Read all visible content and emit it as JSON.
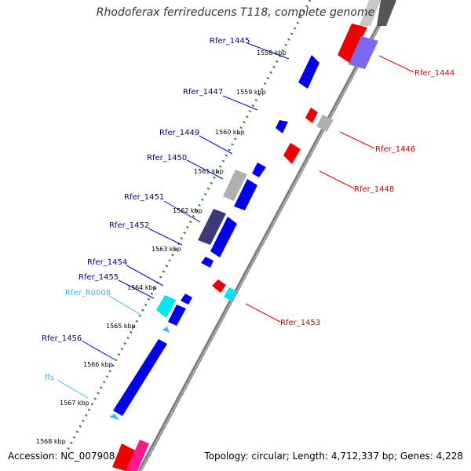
{
  "title": "Rhodoferax ferrireducens T118, complete genome",
  "accession_text": "Accession: NC_007908",
  "topology_text": "Topology: circular; Length: 4,712,337 bp; Genes: 4,228",
  "colors": {
    "forward_gene": "#0000ee",
    "forward_label": "#00008b",
    "reverse_gene": "#ee0000",
    "reverse_label": "#d40000",
    "rna": "#00e5ee",
    "rna_label": "#33bbee",
    "pseudo_gray": "#b0b0b0",
    "purple": "#3b3a7a",
    "pink": "#ff1a8c",
    "tick_green": "#2e8b2e",
    "backbone": "#7a7a7a"
  },
  "kbp_ticks": [
    "1558 kbp",
    "1559 kbp",
    "1560 kbp",
    "1561 kbp",
    "1562 kbp",
    "1563 kbp",
    "1564 kbp",
    "1565 kbp",
    "1566 kbp",
    "1567 kbp",
    "1568 kbp"
  ],
  "forward_labels": [
    "Rfer_1445",
    "Rfer_1447",
    "Rfer_1449",
    "Rfer_1450",
    "Rfer_1451",
    "Rfer_1452",
    "Rfer_1454",
    "Rfer_1455",
    "Rfer_1456"
  ],
  "rna_labels": [
    "Rfer_R0008",
    "ffs"
  ],
  "reverse_labels": [
    "Rfer_1444",
    "Rfer_1446",
    "Rfer_1448",
    "Rfer_1453"
  ]
}
